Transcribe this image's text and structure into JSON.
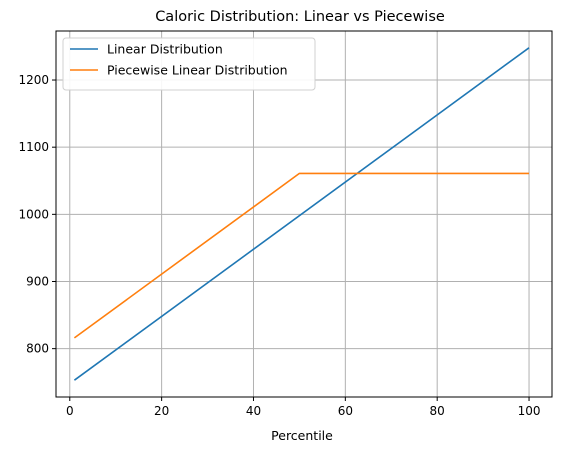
{
  "chart_data": {
    "type": "line",
    "title": "Caloric Distribution: Linear vs Piecewise",
    "xlabel": "Percentile",
    "ylabel": "",
    "xlim": [
      -3,
      105
    ],
    "ylim": [
      728,
      1273
    ],
    "xticks": [
      0,
      20,
      40,
      60,
      80,
      100
    ],
    "yticks": [
      800,
      900,
      1000,
      1100,
      1200
    ],
    "grid": true,
    "legend_position": "upper-left",
    "series": [
      {
        "name": "Linear Distribution",
        "color": "#1f77b4",
        "x": [
          1,
          100
        ],
        "y": [
          753,
          1248
        ]
      },
      {
        "name": "Piecewise Linear Distribution",
        "color": "#ff7f0e",
        "x": [
          1,
          50,
          100
        ],
        "y": [
          816,
          1061,
          1061
        ]
      }
    ]
  }
}
